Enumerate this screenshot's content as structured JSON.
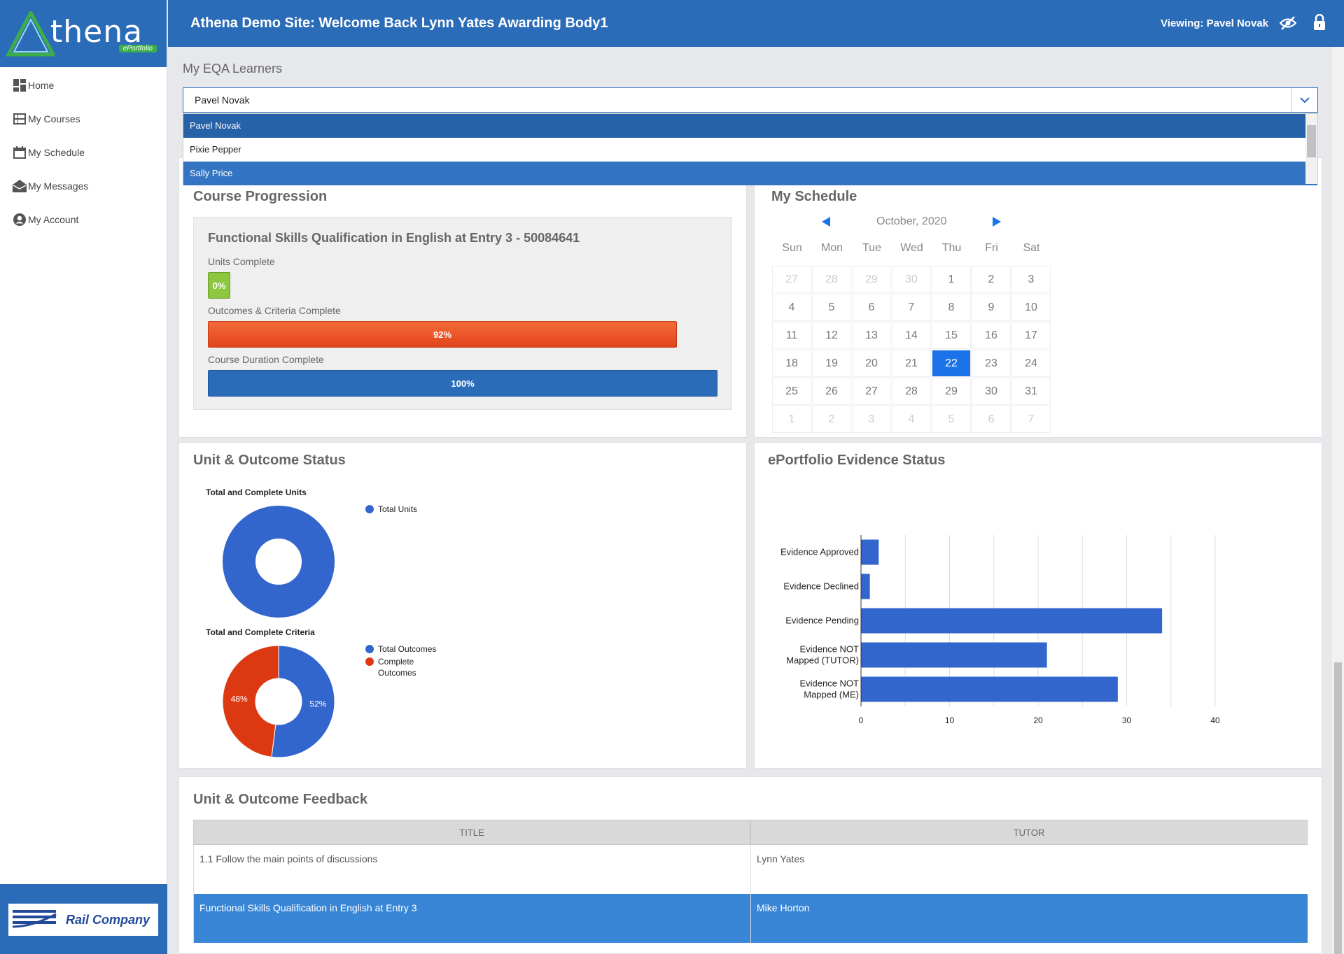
{
  "app": {
    "logo_text": "thena",
    "logo_sub": "ePortfolio",
    "title": "Athena Demo Site: Welcome Back Lynn Yates Awarding Body1",
    "viewing": "Viewing: Pavel Novak"
  },
  "sidebar": {
    "items": [
      {
        "label": "Home",
        "icon": "dashboard-icon"
      },
      {
        "label": "My Courses",
        "icon": "courses-icon"
      },
      {
        "label": "My Schedule",
        "icon": "calendar-icon"
      },
      {
        "label": "My Messages",
        "icon": "envelope-icon"
      },
      {
        "label": "My Account",
        "icon": "user-icon"
      }
    ],
    "footer_logo": "Rail Company"
  },
  "eqa": {
    "title": "My EQA Learners",
    "value": "Pavel Novak",
    "options": [
      "Pavel Novak",
      "Pixie Pepper",
      "Sally Price"
    ]
  },
  "course_progression": {
    "title": "Course Progression",
    "course": "Functional Skills Qualification in English at Entry 3 - 50084641",
    "units_label": "Units Complete",
    "units_value": "0%",
    "units_fraction": 0.0,
    "outcomes_label": "Outcomes & Criteria Complete",
    "outcomes_value": "92%",
    "outcomes_fraction": 0.92,
    "duration_label": "Course Duration Complete",
    "duration_value": "100%",
    "duration_fraction": 1.0,
    "colors": {
      "units": "#8dc63f",
      "outcomes": "#f04e23",
      "duration": "#2b6cb8"
    }
  },
  "schedule": {
    "title": "My Schedule",
    "month": "October, 2020",
    "days": [
      "Sun",
      "Mon",
      "Tue",
      "Wed",
      "Thu",
      "Fri",
      "Sat"
    ],
    "weeks": [
      [
        "27",
        "28",
        "29",
        "30",
        "1",
        "2",
        "3"
      ],
      [
        "4",
        "5",
        "6",
        "7",
        "8",
        "9",
        "10"
      ],
      [
        "11",
        "12",
        "13",
        "14",
        "15",
        "16",
        "17"
      ],
      [
        "18",
        "19",
        "20",
        "21",
        "22",
        "23",
        "24"
      ],
      [
        "25",
        "26",
        "27",
        "28",
        "29",
        "30",
        "31"
      ],
      [
        "1",
        "2",
        "3",
        "4",
        "5",
        "6",
        "7"
      ]
    ],
    "today": "22",
    "accent": "#1a73e8"
  },
  "unit_status": {
    "title": "Unit & Outcome Status"
  },
  "evidence_status": {
    "title": "ePortfolio Evidence Status"
  },
  "chart_data": [
    {
      "type": "pie",
      "title": "Total and Complete Units",
      "donut": true,
      "labels": [
        "Total Units"
      ],
      "values": [
        1
      ],
      "colors": [
        "#3366cc"
      ]
    },
    {
      "type": "pie",
      "title": "Total and Complete Criteria",
      "donut": true,
      "labels": [
        "Total Outcomes",
        "Complete Outcomes"
      ],
      "values": [
        52,
        48
      ],
      "value_labels": [
        "52%",
        "48%"
      ],
      "colors": [
        "#3366cc",
        "#dc3912"
      ]
    },
    {
      "type": "bar",
      "orientation": "horizontal",
      "categories": [
        "Evidence Approved",
        "Evidence Declined",
        "Evidence Pending",
        "Evidence NOT Mapped (TUTOR)",
        "Evidence NOT Mapped (ME)"
      ],
      "category_lines": [
        [
          "Evidence Approved"
        ],
        [
          "Evidence Declined"
        ],
        [
          "Evidence Pending"
        ],
        [
          "Evidence NOT",
          "Mapped (TUTOR)"
        ],
        [
          "Evidence NOT",
          "Mapped (ME)"
        ]
      ],
      "values": [
        2,
        1,
        34,
        21,
        29
      ],
      "xlim": [
        0,
        40
      ],
      "xticks": [
        "0",
        "10",
        "20",
        "30",
        "40"
      ],
      "grid": true,
      "color": "#3366cc"
    }
  ],
  "feedback": {
    "title": "Unit & Outcome Feedback",
    "columns": [
      "TITLE",
      "TUTOR"
    ],
    "rows": [
      [
        "1.1 Follow the main points of discussions",
        "Lynn Yates"
      ],
      [
        "Functional Skills Qualification in English at Entry 3",
        "Mike Horton"
      ]
    ]
  }
}
